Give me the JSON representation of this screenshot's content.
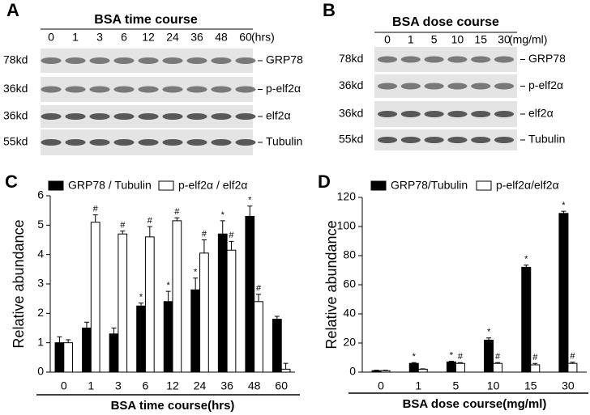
{
  "panel_letters": [
    "A",
    "B",
    "C",
    "D"
  ],
  "blots": [
    {
      "title": "BSA time course",
      "lanes": [
        "0",
        "1",
        "3",
        "6",
        "12",
        "24",
        "36",
        "48",
        "60"
      ],
      "unit": "(hrs)",
      "rows": [
        {
          "size": "78kd",
          "protein": "GRP78"
        },
        {
          "size": "36kd",
          "protein": "p-elf2α"
        },
        {
          "size": "36kd",
          "protein": "elf2α"
        },
        {
          "size": "55kd",
          "protein": "Tubulin"
        }
      ]
    },
    {
      "title": "BSA dose course",
      "lanes": [
        "0",
        "1",
        "5",
        "10",
        "15",
        "30"
      ],
      "unit": "(mg/ml)",
      "rows": [
        {
          "size": "78kd",
          "protein": "GRP78"
        },
        {
          "size": "36kd",
          "protein": "p-elf2α"
        },
        {
          "size": "36kd",
          "protein": "elf2α"
        },
        {
          "size": "55kd",
          "protein": "Tubulin"
        }
      ]
    }
  ],
  "chart_data": [
    {
      "type": "bar",
      "x_label": "BSA time course(hrs)",
      "y_label": "Relative abundance",
      "categories": [
        "0",
        "1",
        "3",
        "6",
        "12",
        "24",
        "36",
        "48",
        "60"
      ],
      "series": [
        {
          "name": "GRP78 / Tubulin",
          "color": "#000000",
          "values": [
            1.0,
            1.5,
            1.3,
            2.25,
            2.4,
            2.8,
            4.7,
            5.3,
            1.8
          ],
          "errors": [
            0.2,
            0.2,
            0.2,
            0.1,
            0.35,
            0.4,
            0.45,
            0.35,
            0.1
          ],
          "markers": [
            null,
            null,
            null,
            "*",
            "*",
            "*",
            "*",
            "*",
            null
          ]
        },
        {
          "name": "p-elf2α / elf2α",
          "color": "#ffffff",
          "values": [
            1.0,
            5.1,
            4.7,
            4.6,
            5.15,
            4.05,
            4.15,
            2.4,
            0.1
          ],
          "errors": [
            0.1,
            0.25,
            0.1,
            0.35,
            0.1,
            0.45,
            0.3,
            0.25,
            0.2
          ],
          "markers": [
            null,
            "#",
            "#",
            "#",
            "#",
            "#",
            "#",
            "#",
            null
          ]
        }
      ],
      "ylim": [
        0,
        6
      ],
      "yticks": [
        0,
        1,
        2,
        3,
        4,
        5,
        6
      ]
    },
    {
      "type": "bar",
      "x_label": "BSA dose course(mg/ml)",
      "y_label": "Relative abundance",
      "categories": [
        "0",
        "1",
        "5",
        "10",
        "15",
        "30"
      ],
      "series": [
        {
          "name": "GRP78/Tubulin",
          "color": "#000000",
          "values": [
            1,
            6,
            7,
            22,
            72,
            109
          ],
          "errors": [
            0.3,
            0.5,
            0.5,
            1.5,
            1.5,
            1.5
          ],
          "markers": [
            null,
            "*",
            "*",
            "*",
            "*",
            "*"
          ]
        },
        {
          "name": "p-elf2α/elf2α",
          "color": "#ffffff",
          "values": [
            1,
            2,
            6,
            6,
            5,
            6
          ],
          "errors": [
            0.3,
            0.3,
            0.5,
            0.5,
            1,
            0.8
          ],
          "markers": [
            null,
            null,
            "#",
            "#",
            "#",
            "#"
          ]
        }
      ],
      "ylim": [
        0,
        120
      ],
      "yticks": [
        0,
        20,
        40,
        60,
        80,
        100,
        120
      ]
    }
  ]
}
